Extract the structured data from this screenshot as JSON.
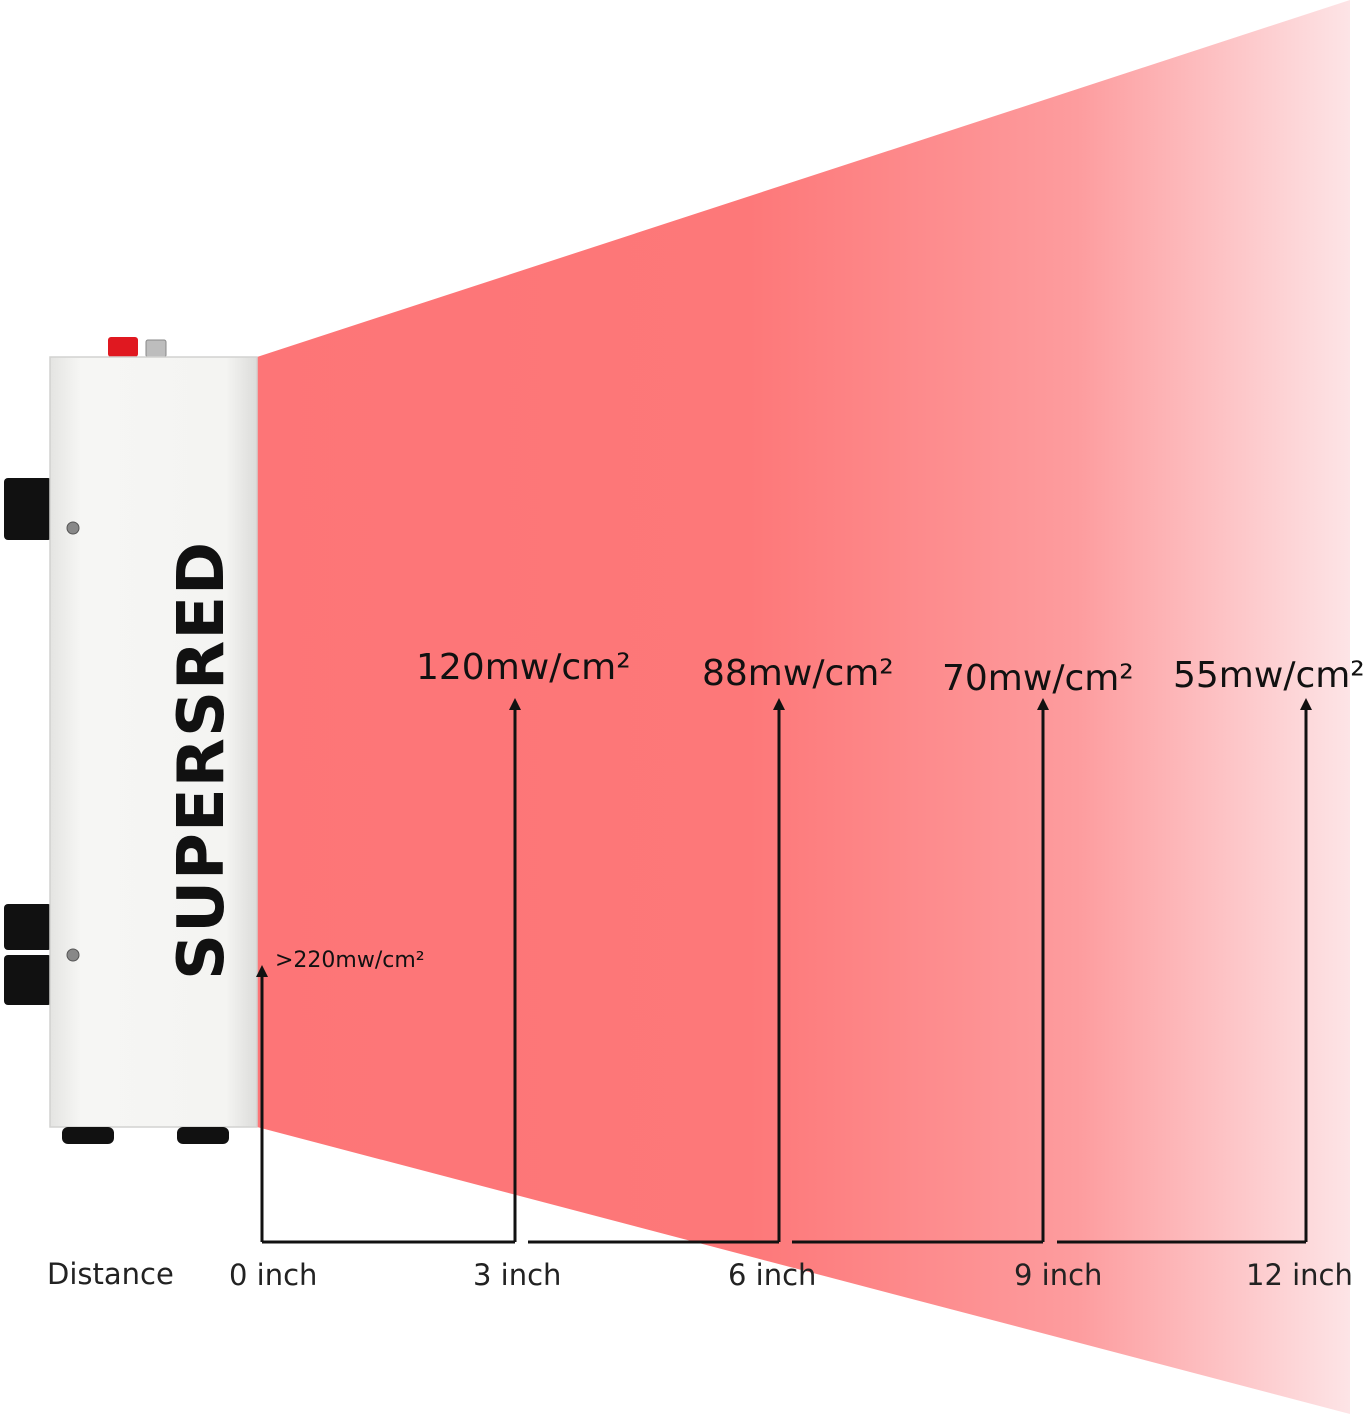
{
  "device": {
    "brand": "SUPERSRED"
  },
  "diagram": {
    "distance_heading": "Distance",
    "colors": {
      "beam_near": "#fd7577",
      "beam_far": "#fde4e6",
      "housing": "#f3f3f1",
      "switch": "#e01820",
      "arrow": "#111111"
    },
    "readings": [
      {
        "distance": "0 inch",
        "irradiance": ">220mw/cm²"
      },
      {
        "distance": "3 inch",
        "irradiance": "120mw/cm²"
      },
      {
        "distance": "6 inch",
        "irradiance": "88mw/cm²"
      },
      {
        "distance": "9 inch",
        "irradiance": "70mw/cm²"
      },
      {
        "distance": "12 inch",
        "irradiance": "55mw/cm²"
      }
    ]
  }
}
